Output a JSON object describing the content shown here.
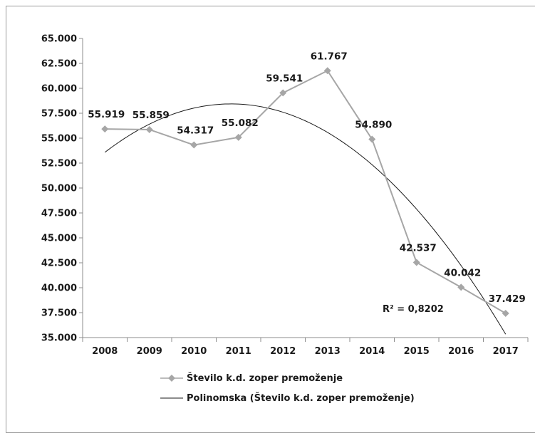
{
  "chart_data": {
    "type": "line",
    "title": "",
    "xlabel": "",
    "ylabel": "",
    "categories": [
      "2008",
      "2009",
      "2010",
      "2011",
      "2012",
      "2013",
      "2014",
      "2015",
      "2016",
      "2017"
    ],
    "series": [
      {
        "name": "Število k.d. zoper premoženje",
        "values": [
          55919,
          55859,
          54317,
          55082,
          59541,
          61767,
          54890,
          42537,
          40042,
          37429
        ],
        "value_labels": [
          "55.919",
          "55.859",
          "54.317",
          "55.082",
          "59.541",
          "61.767",
          "54.890",
          "42.537",
          "40.042",
          "37.429"
        ],
        "color": "#a6a6a6",
        "marker": "diamond"
      }
    ],
    "trendline": {
      "name": "Polinomska (Število k.d. zoper premoženje)",
      "type": "polynomial",
      "color": "#1a1a1a",
      "r2_label": "R² = 0,8202"
    },
    "ylim": [
      35000,
      65000
    ],
    "y_ticks": [
      35000,
      37500,
      40000,
      42500,
      45000,
      47500,
      50000,
      52500,
      55000,
      57500,
      60000,
      62500,
      65000
    ],
    "y_tick_labels": [
      "35.000",
      "37.500",
      "40.000",
      "42.500",
      "45.000",
      "47.500",
      "50.000",
      "52.500",
      "55.000",
      "57.500",
      "60.000",
      "62.500",
      "65.000"
    ],
    "grid": false,
    "legend_position": "bottom"
  }
}
